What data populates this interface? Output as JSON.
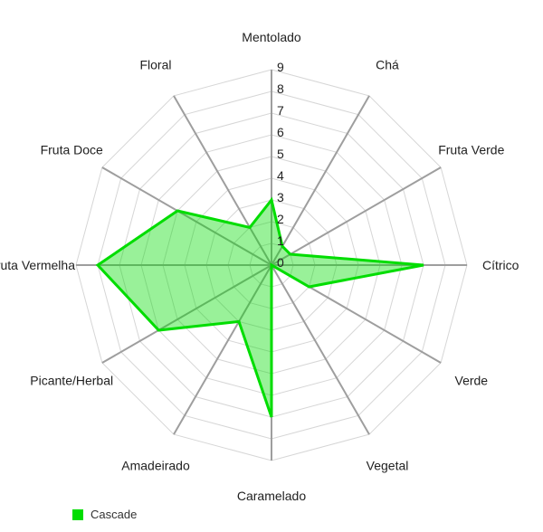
{
  "chart_data": {
    "type": "radar",
    "categories": [
      "Mentolado",
      "Chá",
      "Fruta Verde",
      "Cítrico",
      "Verde",
      "Vegetal",
      "Caramelado",
      "Amadeirado",
      "Picante/Herbal",
      "Fruta Vermelha",
      "Fruta Doce",
      "Floral"
    ],
    "series": [
      {
        "name": "Cascade",
        "values": [
          3,
          1,
          1,
          7,
          2,
          0,
          7,
          3,
          6,
          8,
          5,
          2
        ],
        "stroke_color": "#00dd00",
        "fill_color": "#00dd00",
        "fill_opacity": 0.4
      }
    ],
    "radial_axis": {
      "min": 0,
      "max": 9,
      "tick_interval": 1,
      "tick_labels": [
        "0",
        "1",
        "2",
        "3",
        "4",
        "5",
        "6",
        "7",
        "8",
        "9"
      ]
    },
    "grid": {
      "shape": "polygon",
      "rings": 9,
      "ring_color": "#d6d6d6",
      "spoke_color": "#9e9e9e",
      "tick_text_color": "#212121",
      "label_text_color": "#212121"
    },
    "legend": {
      "position": "bottom-left",
      "items": [
        {
          "label": "Cascade",
          "color": "#00dd00"
        }
      ]
    }
  }
}
